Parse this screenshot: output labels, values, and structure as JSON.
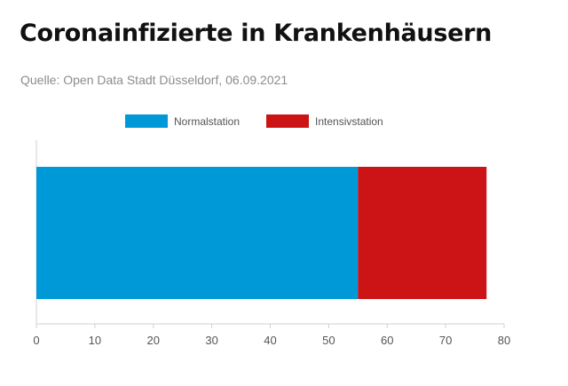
{
  "header": {
    "title": "Coronainfizierte in Krankenhäusern",
    "source": "Quelle: Open Data Stadt Düsseldorf, 06.09.2021"
  },
  "chart_data": {
    "type": "bar",
    "orientation": "horizontal",
    "stacked": true,
    "categories": [
      ""
    ],
    "series": [
      {
        "name": "Normalstation",
        "values": [
          55
        ],
        "color": "#0099d8"
      },
      {
        "name": "Intensivstation",
        "values": [
          22
        ],
        "color": "#cc1316"
      }
    ],
    "xlim": [
      0,
      80
    ],
    "xticks": [
      0,
      10,
      20,
      30,
      40,
      50,
      60,
      70,
      80
    ],
    "legend": "top-center",
    "grid": false
  }
}
